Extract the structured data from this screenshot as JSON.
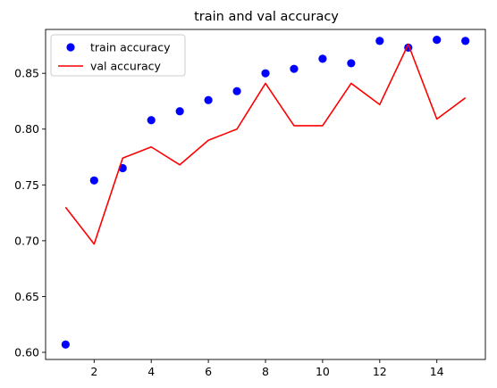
{
  "chart_data": {
    "type": "line",
    "title": "train and val accuracy",
    "xlabel": "",
    "ylabel": "",
    "x": [
      1,
      2,
      3,
      4,
      5,
      6,
      7,
      8,
      9,
      10,
      11,
      12,
      13,
      14,
      15
    ],
    "xlim": [
      0.3,
      15.7
    ],
    "ylim": [
      0.5936,
      0.8893
    ],
    "xticks": [
      2,
      4,
      6,
      8,
      10,
      12,
      14
    ],
    "xtick_labels": [
      "2",
      "4",
      "6",
      "8",
      "10",
      "12",
      "14"
    ],
    "yticks": [
      0.6,
      0.65,
      0.7,
      0.75,
      0.8,
      0.85
    ],
    "ytick_labels": [
      "0.60",
      "0.65",
      "0.70",
      "0.75",
      "0.80",
      "0.85"
    ],
    "grid": false,
    "legend_position": "top-left",
    "series": [
      {
        "name": "train accuracy",
        "style": "markers",
        "color": "#0000ff",
        "values": [
          0.607,
          0.754,
          0.765,
          0.808,
          0.816,
          0.826,
          0.834,
          0.85,
          0.854,
          0.863,
          0.859,
          0.879,
          0.873,
          0.88,
          0.879
        ]
      },
      {
        "name": "val accuracy",
        "style": "line",
        "color": "#ff0000",
        "values": [
          0.73,
          0.697,
          0.774,
          0.784,
          0.768,
          0.79,
          0.8,
          0.841,
          0.803,
          0.803,
          0.841,
          0.822,
          0.876,
          0.809,
          0.828
        ]
      }
    ]
  }
}
